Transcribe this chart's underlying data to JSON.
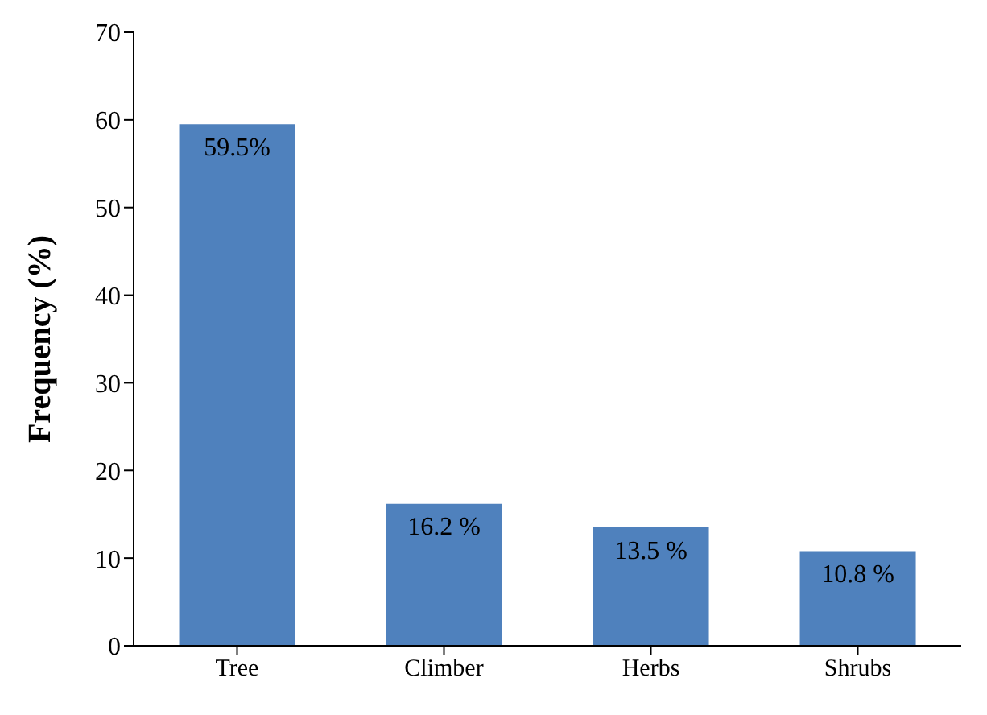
{
  "chart_data": {
    "type": "bar",
    "ylabel": "Frequency (%)",
    "categories": [
      "Tree",
      "Climber",
      "Herbs",
      "Shrubs"
    ],
    "values": [
      59.5,
      16.2,
      13.5,
      10.8
    ],
    "value_labels": [
      "59.5%",
      "16.2 %",
      "13.5 %",
      "10.8  %"
    ],
    "color": "#4f81bd",
    "ylim": [
      0,
      70
    ],
    "yticks": [
      0,
      10,
      20,
      30,
      40,
      50,
      60,
      70
    ],
    "grid": false,
    "legend": false
  }
}
